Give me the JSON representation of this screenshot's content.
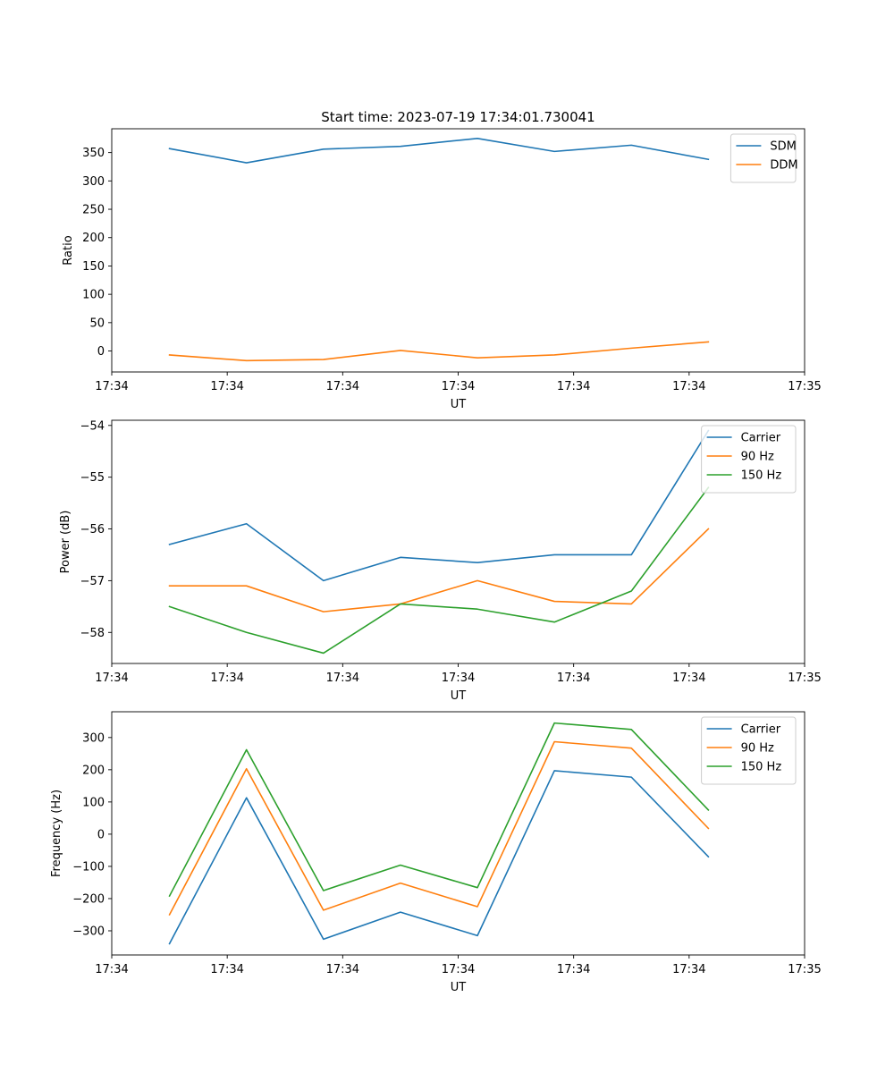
{
  "chart_data": [
    {
      "type": "line",
      "title": "Start time: 2023-07-19 17:34:01.730041",
      "xlabel": "UT",
      "ylabel": "Ratio",
      "xlim": [
        0,
        9
      ],
      "ylim": [
        -37,
        392
      ],
      "x": [
        0.75,
        1.75,
        2.75,
        3.75,
        4.75,
        5.75,
        6.75,
        7.75
      ],
      "x_ticks": [
        0,
        1.5,
        3,
        4.5,
        6,
        7.5,
        9
      ],
      "x_tick_labels": [
        "17:34",
        "17:34",
        "17:34",
        "17:34",
        "17:34",
        "17:34",
        "17:35"
      ],
      "y_ticks": [
        0,
        50,
        100,
        150,
        200,
        250,
        300,
        350
      ],
      "y_tick_labels": [
        "0",
        "50",
        "100",
        "150",
        "200",
        "250",
        "300",
        "350"
      ],
      "legend_position": "top-right",
      "series": [
        {
          "name": "SDM",
          "color": "#1f77b4",
          "values": [
            357,
            332,
            356,
            361,
            375,
            352,
            363,
            338
          ]
        },
        {
          "name": "DDM",
          "color": "#ff7f0e",
          "values": [
            -7,
            -17,
            -15,
            1,
            -12,
            -7,
            5,
            16
          ]
        }
      ]
    },
    {
      "type": "line",
      "title": "",
      "xlabel": "UT",
      "ylabel": "Power (dB)",
      "xlim": [
        0,
        9
      ],
      "ylim": [
        -58.6,
        -53.9
      ],
      "x": [
        0.75,
        1.75,
        2.75,
        3.75,
        4.75,
        5.75,
        6.75,
        7.75
      ],
      "x_ticks": [
        0,
        1.5,
        3,
        4.5,
        6,
        7.5,
        9
      ],
      "x_tick_labels": [
        "17:34",
        "17:34",
        "17:34",
        "17:34",
        "17:34",
        "17:34",
        "17:35"
      ],
      "y_ticks": [
        -58,
        -57,
        -56,
        -55,
        -54
      ],
      "y_tick_labels": [
        "−58",
        "−57",
        "−56",
        "−55",
        "−54"
      ],
      "legend_position": "top-right",
      "series": [
        {
          "name": "Carrier",
          "color": "#1f77b4",
          "values": [
            -56.3,
            -55.9,
            -57.0,
            -56.55,
            -56.65,
            -56.5,
            -56.5,
            -54.1
          ]
        },
        {
          "name": "90 Hz",
          "color": "#ff7f0e",
          "values": [
            -57.1,
            -57.1,
            -57.6,
            -57.45,
            -57.0,
            -57.4,
            -57.45,
            -56.0
          ]
        },
        {
          "name": "150 Hz",
          "color": "#2ca02c",
          "values": [
            -57.5,
            -58.0,
            -58.4,
            -57.45,
            -57.55,
            -57.8,
            -57.2,
            -55.2
          ]
        }
      ]
    },
    {
      "type": "line",
      "title": "",
      "xlabel": "UT",
      "ylabel": "Frequency (Hz)",
      "xlim": [
        0,
        9
      ],
      "ylim": [
        -375,
        380
      ],
      "x": [
        0.75,
        1.75,
        2.75,
        3.75,
        4.75,
        5.75,
        6.75,
        7.75
      ],
      "x_ticks": [
        0,
        1.5,
        3,
        4.5,
        6,
        7.5,
        9
      ],
      "x_tick_labels": [
        "17:34",
        "17:34",
        "17:34",
        "17:34",
        "17:34",
        "17:34",
        "17:35"
      ],
      "y_ticks": [
        -300,
        -200,
        -100,
        0,
        100,
        200,
        300
      ],
      "y_tick_labels": [
        "−300",
        "−200",
        "−100",
        "0",
        "100",
        "200",
        "300"
      ],
      "legend_position": "top-right",
      "series": [
        {
          "name": "Carrier",
          "color": "#1f77b4",
          "values": [
            -340,
            113,
            -326,
            -242,
            -315,
            197,
            177,
            -70
          ]
        },
        {
          "name": "90 Hz",
          "color": "#ff7f0e",
          "values": [
            -250,
            203,
            -236,
            -152,
            -225,
            287,
            267,
            18
          ]
        },
        {
          "name": "150 Hz",
          "color": "#2ca02c",
          "values": [
            -192,
            262,
            -175,
            -96,
            -166,
            345,
            325,
            75
          ]
        }
      ]
    }
  ]
}
